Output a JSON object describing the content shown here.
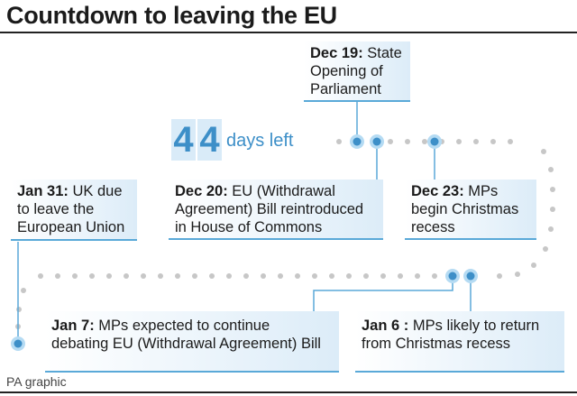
{
  "title": "Countdown to leaving the EU",
  "countdown": {
    "digits": [
      "4",
      "4"
    ],
    "label": "days left",
    "accent": "#3d8fc8",
    "digit_bg": "#d9ebf8"
  },
  "events": [
    {
      "id": "dec19",
      "date": "Dec 19:",
      "lines": [
        " State",
        "Opening of",
        "Parliament"
      ]
    },
    {
      "id": "dec20",
      "date": "Dec 20:",
      "lines": [
        " EU (Withdrawal",
        "Agreement) Bill reintroduced",
        "in House of Commons"
      ]
    },
    {
      "id": "dec23",
      "date": "Dec 23:",
      "lines": [
        " MPs",
        "begin Christmas",
        "recess"
      ]
    },
    {
      "id": "jan6",
      "date": "Jan 6 :",
      "lines": [
        " MPs likely to return",
        "from Christmas recess"
      ]
    },
    {
      "id": "jan7",
      "date": "Jan 7:",
      "lines": [
        " MPs expected to continue",
        "debating EU (Withdrawal Agreement) Bill"
      ]
    },
    {
      "id": "jan31",
      "date": "Jan 31:",
      "lines": [
        " UK due",
        "to leave the",
        "European Union"
      ]
    }
  ],
  "credit": "PA graphic",
  "colors": {
    "accent": "#5aa9d8",
    "dot": "#c7c7c7",
    "box_fill": "#dcecf8",
    "text": "#1b1b1b"
  }
}
